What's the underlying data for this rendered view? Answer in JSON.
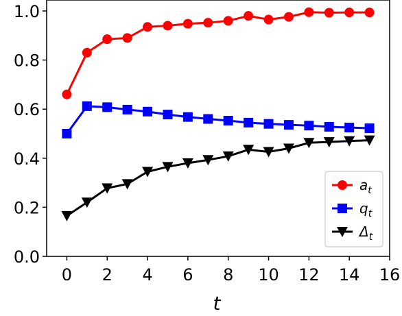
{
  "chart_data": {
    "type": "line",
    "title": "",
    "xlabel": "t",
    "ylabel": "",
    "xlim": [
      -1,
      16
    ],
    "ylim": [
      0,
      1.0
    ],
    "xticks": [
      0,
      2,
      4,
      6,
      8,
      10,
      12,
      14,
      16
    ],
    "yticks": [
      0.0,
      0.2,
      0.4,
      0.6,
      0.8,
      1.0
    ],
    "xtick_labels": [
      "0",
      "2",
      "4",
      "6",
      "8",
      "10",
      "12",
      "14",
      "16"
    ],
    "ytick_labels": [
      "0.0",
      "0.2",
      "0.4",
      "0.6",
      "0.8",
      "1.0"
    ],
    "grid": false,
    "legend_position": "lower-right",
    "x": [
      0,
      1,
      2,
      3,
      4,
      5,
      6,
      7,
      8,
      9,
      10,
      11,
      12,
      13,
      14,
      15
    ],
    "series": [
      {
        "name": "a",
        "name_sub": "t",
        "color": "#ff0000",
        "marker": "circle",
        "values": [
          0.66,
          0.83,
          0.885,
          0.89,
          0.935,
          0.94,
          0.948,
          0.952,
          0.96,
          0.98,
          0.965,
          0.976,
          0.995,
          0.993,
          0.994,
          0.994
        ]
      },
      {
        "name": "q",
        "name_sub": "t",
        "color": "#0000ff",
        "marker": "square",
        "values": [
          0.5,
          0.612,
          0.608,
          0.598,
          0.59,
          0.578,
          0.568,
          0.56,
          0.553,
          0.545,
          0.54,
          0.536,
          0.533,
          0.528,
          0.525,
          0.522
        ]
      },
      {
        "name": "Δ",
        "name_sub": "t",
        "color": "#000000",
        "marker": "triangle-down",
        "values": [
          0.165,
          0.22,
          0.278,
          0.295,
          0.345,
          0.365,
          0.38,
          0.393,
          0.408,
          0.435,
          0.426,
          0.44,
          0.463,
          0.466,
          0.47,
          0.473
        ]
      }
    ]
  }
}
